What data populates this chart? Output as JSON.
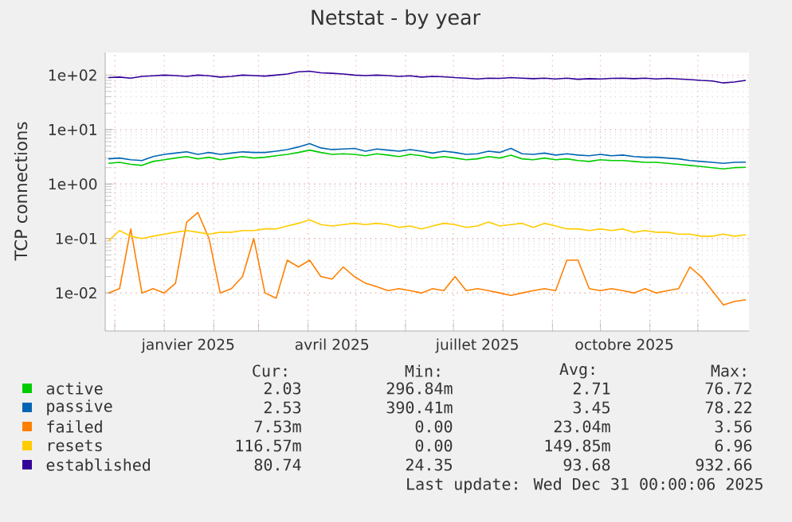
{
  "chart_data": {
    "type": "line",
    "title": "Netstat - by year",
    "ylabel": "TCP connections",
    "x": [
      "2024-11-27",
      "2024-12-04",
      "2024-12-11",
      "2024-12-18",
      "2024-12-25",
      "2025-01-01",
      "2025-01-08",
      "2025-01-15",
      "2025-01-22",
      "2025-01-29",
      "2025-02-05",
      "2025-02-12",
      "2025-02-19",
      "2025-02-26",
      "2025-03-05",
      "2025-03-12",
      "2025-03-19",
      "2025-03-26",
      "2025-04-02",
      "2025-04-09",
      "2025-04-16",
      "2025-04-23",
      "2025-04-30",
      "2025-05-07",
      "2025-05-14",
      "2025-05-21",
      "2025-05-28",
      "2025-06-04",
      "2025-06-11",
      "2025-06-18",
      "2025-06-25",
      "2025-07-02",
      "2025-07-09",
      "2025-07-16",
      "2025-07-23",
      "2025-07-30",
      "2025-08-06",
      "2025-08-13",
      "2025-08-20",
      "2025-08-27",
      "2025-09-03",
      "2025-09-10",
      "2025-09-17",
      "2025-09-24",
      "2025-10-01",
      "2025-10-08",
      "2025-10-15",
      "2025-10-22",
      "2025-10-29",
      "2025-11-05",
      "2025-11-12",
      "2025-11-19",
      "2025-11-26",
      "2025-12-03",
      "2025-12-10",
      "2025-12-17",
      "2025-12-24",
      "2025-12-31"
    ],
    "series": [
      {
        "name": "active",
        "color": "#00cc00",
        "values": [
          2.4,
          2.5,
          2.3,
          2.2,
          2.6,
          2.8,
          3.0,
          3.2,
          2.9,
          3.1,
          2.8,
          3.0,
          3.2,
          3.0,
          3.1,
          3.3,
          3.5,
          3.8,
          4.2,
          3.8,
          3.5,
          3.6,
          3.5,
          3.3,
          3.6,
          3.4,
          3.2,
          3.5,
          3.3,
          3.0,
          3.2,
          3.0,
          2.8,
          2.9,
          3.2,
          3.0,
          3.4,
          2.9,
          2.8,
          3.0,
          2.8,
          2.9,
          2.7,
          2.6,
          2.8,
          2.7,
          2.7,
          2.6,
          2.5,
          2.5,
          2.4,
          2.3,
          2.2,
          2.1,
          2.0,
          1.9,
          2.0,
          2.03
        ]
      },
      {
        "name": "passive",
        "color": "#0066b3",
        "values": [
          2.9,
          3.0,
          2.8,
          2.7,
          3.2,
          3.5,
          3.7,
          3.9,
          3.5,
          3.8,
          3.5,
          3.7,
          3.9,
          3.8,
          3.8,
          4.0,
          4.3,
          4.8,
          5.5,
          4.6,
          4.3,
          4.4,
          4.5,
          4.0,
          4.4,
          4.2,
          4.0,
          4.3,
          4.0,
          3.7,
          4.0,
          3.8,
          3.5,
          3.6,
          4.0,
          3.8,
          4.5,
          3.6,
          3.5,
          3.7,
          3.4,
          3.6,
          3.4,
          3.3,
          3.5,
          3.3,
          3.4,
          3.2,
          3.1,
          3.1,
          3.0,
          2.9,
          2.7,
          2.6,
          2.5,
          2.4,
          2.5,
          2.53
        ]
      },
      {
        "name": "failed",
        "color": "#ff8000",
        "values": [
          0.01,
          0.012,
          0.15,
          0.01,
          0.012,
          0.01,
          0.015,
          0.2,
          0.3,
          0.1,
          0.01,
          0.012,
          0.02,
          0.1,
          0.01,
          0.008,
          0.04,
          0.03,
          0.04,
          0.02,
          0.018,
          0.03,
          0.02,
          0.015,
          0.013,
          0.011,
          0.012,
          0.011,
          0.01,
          0.012,
          0.011,
          0.02,
          0.011,
          0.012,
          0.011,
          0.01,
          0.009,
          0.01,
          0.011,
          0.012,
          0.011,
          0.04,
          0.04,
          0.012,
          0.011,
          0.012,
          0.011,
          0.01,
          0.012,
          0.01,
          0.011,
          0.012,
          0.03,
          0.02,
          0.011,
          0.006,
          0.007,
          0.0075
        ]
      },
      {
        "name": "resets",
        "color": "#ffcc00",
        "values": [
          0.09,
          0.14,
          0.11,
          0.1,
          0.11,
          0.12,
          0.13,
          0.14,
          0.13,
          0.12,
          0.13,
          0.13,
          0.14,
          0.14,
          0.15,
          0.15,
          0.17,
          0.19,
          0.22,
          0.18,
          0.17,
          0.18,
          0.19,
          0.18,
          0.19,
          0.18,
          0.16,
          0.17,
          0.15,
          0.17,
          0.19,
          0.18,
          0.16,
          0.17,
          0.2,
          0.17,
          0.18,
          0.19,
          0.16,
          0.19,
          0.17,
          0.15,
          0.15,
          0.14,
          0.15,
          0.14,
          0.15,
          0.13,
          0.14,
          0.13,
          0.13,
          0.12,
          0.12,
          0.11,
          0.11,
          0.12,
          0.11,
          0.117
        ]
      },
      {
        "name": "established",
        "color": "#330099",
        "values": [
          90,
          92,
          88,
          95,
          97,
          100,
          98,
          95,
          100,
          97,
          92,
          95,
          100,
          98,
          96,
          100,
          105,
          115,
          118,
          110,
          108,
          105,
          100,
          98,
          100,
          98,
          95,
          97,
          92,
          95,
          93,
          90,
          88,
          85,
          88,
          87,
          90,
          88,
          86,
          88,
          85,
          88,
          84,
          86,
          85,
          87,
          88,
          86,
          88,
          85,
          87,
          85,
          83,
          80,
          78,
          72,
          75,
          80
        ]
      }
    ],
    "log": "y",
    "ylim": [
      0.002,
      260
    ],
    "yticks": [
      {
        "value": 0.01,
        "label": "1e-02"
      },
      {
        "value": 0.1,
        "label": "1e-01"
      },
      {
        "value": 1,
        "label": "1e+00"
      },
      {
        "value": 10,
        "label": "1e+01"
      },
      {
        "value": 100,
        "label": "1e+02"
      }
    ],
    "xlim": [
      "2024-11-25",
      "2026-01-02"
    ],
    "xticks": [
      {
        "value": "2024-12-01",
        "label": null
      },
      {
        "value": "2025-01-01",
        "label": null
      },
      {
        "value": "2025-02-01",
        "label": null
      },
      {
        "value": "2025-03-01",
        "label": null
      },
      {
        "value": "2025-04-01",
        "label": null
      },
      {
        "value": "2025-05-01",
        "label": null
      },
      {
        "value": "2025-06-01",
        "label": null
      },
      {
        "value": "2025-07-01",
        "label": null
      },
      {
        "value": "2025-08-01",
        "label": null
      },
      {
        "value": "2025-09-01",
        "label": null
      },
      {
        "value": "2025-10-01",
        "label": null
      },
      {
        "value": "2025-11-01",
        "label": null
      },
      {
        "value": "2025-12-01",
        "label": null
      },
      {
        "value": "2025-01-16",
        "label": "janvier 2025"
      },
      {
        "value": "2025-04-16",
        "label": "avril 2025"
      },
      {
        "value": "2025-07-16",
        "label": "juillet 2025"
      },
      {
        "value": "2025-10-16",
        "label": "octobre 2025"
      }
    ],
    "grid": true,
    "legend": "bottom",
    "marker": "none",
    "line_style": "solid",
    "annotations": [
      "Cur:",
      "Min:",
      "Avg:",
      "Max:",
      "2.03",
      "296.84m",
      "2.71",
      "76.72",
      "2.53",
      "390.41m",
      "3.45",
      "78.22",
      "7.53m",
      "0.00",
      "23.04m",
      "3.56",
      "116.57m",
      "0.00",
      "149.85m",
      "6.96",
      "80.74",
      "24.35",
      "93.68",
      "932.66",
      "Last update: Wed Dec 31 00:00:06 2025"
    ]
  }
}
